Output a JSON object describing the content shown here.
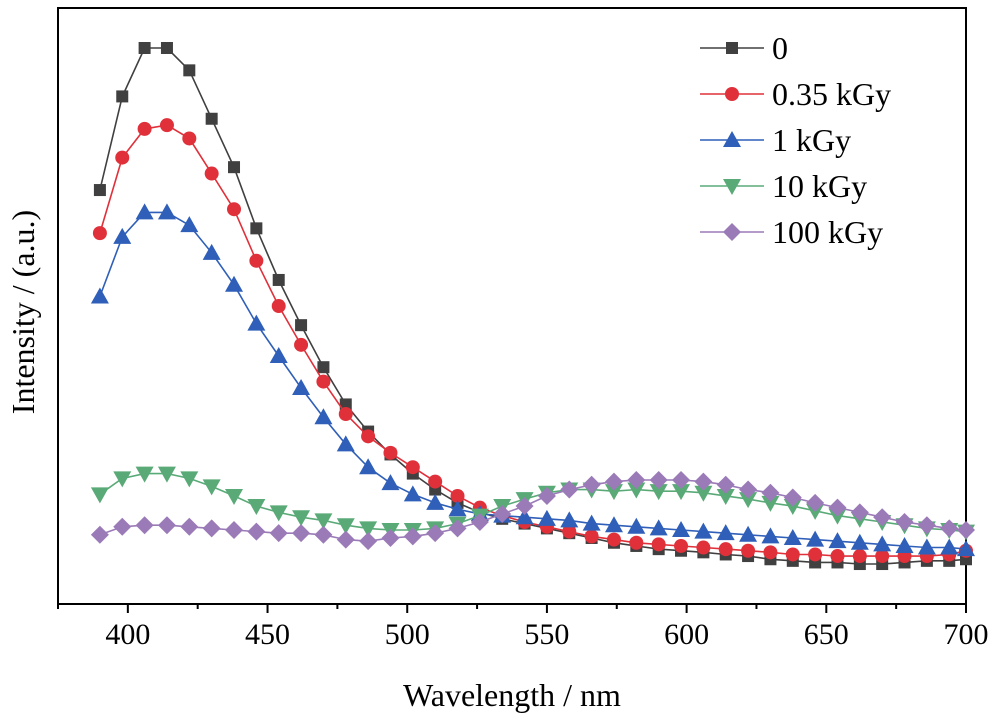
{
  "chart_data": {
    "type": "line",
    "xlabel": "Wavelength / nm",
    "ylabel": "Intensity / (a.u.)",
    "xlim": [
      375,
      700
    ],
    "ylim": [
      0,
      1
    ],
    "xticks": [
      400,
      450,
      500,
      550,
      600,
      650,
      700
    ],
    "x_tick_labels": [
      "400",
      "450",
      "500",
      "550",
      "600",
      "650",
      "700"
    ],
    "y_tick_labels_shown": false,
    "grid": false,
    "legend_position": "top-right",
    "x": [
      390,
      398,
      406,
      414,
      422,
      430,
      438,
      446,
      454,
      462,
      470,
      478,
      486,
      494,
      502,
      510,
      518,
      526,
      534,
      542,
      550,
      558,
      566,
      574,
      582,
      590,
      598,
      606,
      614,
      622,
      630,
      638,
      646,
      654,
      662,
      670,
      678,
      686,
      694,
      700
    ],
    "series": [
      {
        "name": "0",
        "color": "#404040",
        "marker": "square",
        "values": [
          0.733,
          0.909,
          1.0,
          1.0,
          0.958,
          0.867,
          0.776,
          0.661,
          0.564,
          0.479,
          0.4,
          0.33,
          0.279,
          0.236,
          0.2,
          0.17,
          0.145,
          0.127,
          0.115,
          0.106,
          0.097,
          0.088,
          0.079,
          0.07,
          0.064,
          0.058,
          0.055,
          0.052,
          0.048,
          0.045,
          0.039,
          0.036,
          0.033,
          0.033,
          0.03,
          0.03,
          0.033,
          0.036,
          0.036,
          0.039
        ]
      },
      {
        "name": "0.35 kGy",
        "color": "#e0303a",
        "marker": "circle",
        "values": [
          0.652,
          0.794,
          0.848,
          0.855,
          0.83,
          0.764,
          0.697,
          0.6,
          0.515,
          0.442,
          0.373,
          0.312,
          0.27,
          0.239,
          0.212,
          0.185,
          0.158,
          0.136,
          0.121,
          0.109,
          0.1,
          0.091,
          0.082,
          0.076,
          0.07,
          0.067,
          0.064,
          0.061,
          0.058,
          0.055,
          0.052,
          0.048,
          0.048,
          0.045,
          0.045,
          0.045,
          0.045,
          0.045,
          0.048,
          0.055
        ]
      },
      {
        "name": "1 kGy",
        "color": "#2f5fb8",
        "marker": "triangle-up",
        "values": [
          0.533,
          0.645,
          0.691,
          0.691,
          0.667,
          0.615,
          0.555,
          0.482,
          0.421,
          0.361,
          0.306,
          0.255,
          0.212,
          0.182,
          0.161,
          0.145,
          0.133,
          0.124,
          0.121,
          0.118,
          0.115,
          0.112,
          0.106,
          0.103,
          0.1,
          0.097,
          0.094,
          0.091,
          0.088,
          0.085,
          0.082,
          0.079,
          0.076,
          0.073,
          0.07,
          0.067,
          0.064,
          0.061,
          0.061,
          0.058
        ]
      },
      {
        "name": "10 kGy",
        "color": "#5aaa78",
        "marker": "triangle-down",
        "values": [
          0.161,
          0.191,
          0.2,
          0.2,
          0.191,
          0.176,
          0.158,
          0.139,
          0.127,
          0.118,
          0.112,
          0.103,
          0.097,
          0.094,
          0.094,
          0.097,
          0.106,
          0.121,
          0.139,
          0.152,
          0.164,
          0.17,
          0.17,
          0.167,
          0.17,
          0.167,
          0.167,
          0.164,
          0.158,
          0.152,
          0.145,
          0.139,
          0.13,
          0.121,
          0.115,
          0.109,
          0.103,
          0.097,
          0.094,
          0.091
        ]
      },
      {
        "name": "100 kGy",
        "color": "#9b7ab8",
        "marker": "diamond",
        "values": [
          0.085,
          0.1,
          0.103,
          0.103,
          0.1,
          0.097,
          0.094,
          0.091,
          0.088,
          0.088,
          0.085,
          0.076,
          0.073,
          0.079,
          0.082,
          0.088,
          0.097,
          0.109,
          0.124,
          0.139,
          0.158,
          0.17,
          0.179,
          0.185,
          0.188,
          0.188,
          0.188,
          0.185,
          0.179,
          0.17,
          0.164,
          0.155,
          0.145,
          0.136,
          0.127,
          0.118,
          0.109,
          0.103,
          0.097,
          0.094
        ]
      }
    ]
  }
}
